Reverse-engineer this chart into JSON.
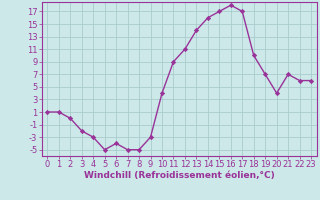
{
  "x": [
    0,
    1,
    2,
    3,
    4,
    5,
    6,
    7,
    8,
    9,
    10,
    11,
    12,
    13,
    14,
    15,
    16,
    17,
    18,
    19,
    20,
    21,
    22,
    23
  ],
  "y": [
    1,
    1,
    0,
    -2,
    -3,
    -5,
    -4,
    -5,
    -5,
    -3,
    4,
    9,
    11,
    14,
    16,
    17,
    18,
    17,
    10,
    7,
    4,
    7,
    6,
    6
  ],
  "line_color": "#993399",
  "marker": "D",
  "marker_size": 2.2,
  "bg_color": "#cce8e8",
  "grid_color": "#aacccc",
  "xlabel": "Windchill (Refroidissement éolien,°C)",
  "xlabel_fontsize": 6.5,
  "yticks": [
    -5,
    -3,
    -1,
    1,
    3,
    5,
    7,
    9,
    11,
    13,
    15,
    17
  ],
  "xticks": [
    0,
    1,
    2,
    3,
    4,
    5,
    6,
    7,
    8,
    9,
    10,
    11,
    12,
    13,
    14,
    15,
    16,
    17,
    18,
    19,
    20,
    21,
    22,
    23
  ],
  "ylim": [
    -6,
    18.5
  ],
  "xlim": [
    -0.5,
    23.5
  ],
  "tick_fontsize": 6,
  "line_width": 1.0
}
